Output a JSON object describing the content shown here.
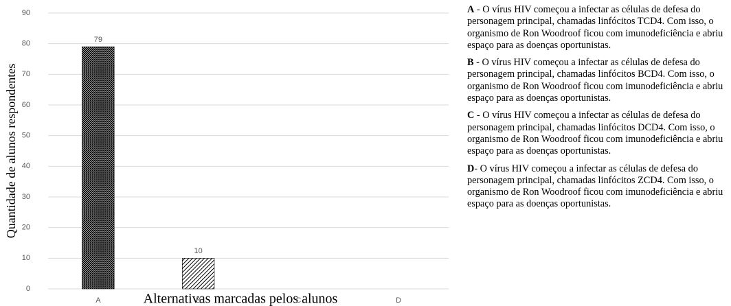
{
  "chart_data": {
    "type": "bar",
    "x_label": "Alternativas marcadas pelos alunos",
    "y_label": "Quantidade de alunos respondentes",
    "categories": [
      "A",
      "B",
      "C",
      "D"
    ],
    "values": [
      79,
      10,
      0,
      0
    ],
    "ylim": [
      0,
      90
    ],
    "yticks": [
      0,
      10,
      20,
      30,
      40,
      50,
      60,
      70,
      80,
      90
    ],
    "grid": true
  },
  "notes": [
    {
      "letter": "A",
      "text": " - O vírus HIV começou a infectar as células de defesa do personagem principal, chamadas linfócitos TCD4. Com isso, o organismo de Ron Woodroof ficou com imunodeficiência e abriu espaço para as doenças oportunistas."
    },
    {
      "letter": "B",
      "text": " - O vírus HIV começou a infectar as células de defesa do personagem principal, chamadas linfócitos BCD4. Com isso, o organismo de Ron Woodroof ficou com imunodeficiência e abriu espaço para as doenças oportunistas."
    },
    {
      "letter": "C",
      "text": " - O vírus HIV começou a infectar as células de defesa do personagem principal, chamadas linfócitos DCD4. Com isso, o organismo de Ron Woodroof ficou com imunodeficiência e abriu espaço para as doenças oportunistas."
    },
    {
      "letter": "D",
      "text": "- O vírus HIV começou a infectar as células de defesa do personagem principal, chamadas linfócitos ZCD4. Com isso, o organismo de Ron Woodroof ficou com imunodeficiência e abriu espaço para as doenças oportunistas."
    }
  ]
}
